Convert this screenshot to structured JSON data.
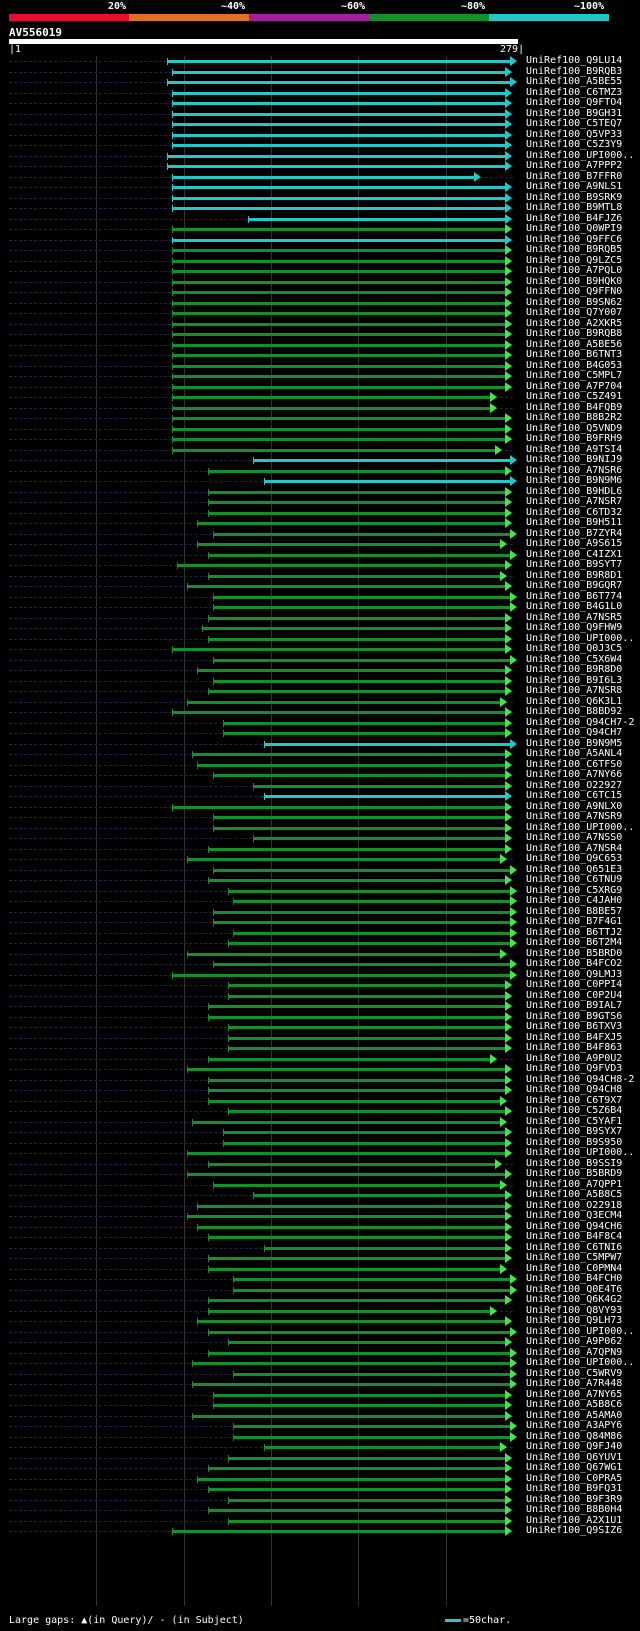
{
  "legend": {
    "bands": [
      {
        "label": "20%",
        "color": "#e0102a"
      },
      {
        "label": "~40%",
        "color": "#e07020"
      },
      {
        "label": "~60%",
        "color": "#a0209a"
      },
      {
        "label": "~80%",
        "color": "#12902a"
      },
      {
        "label": "~100%",
        "color": "#22c7c7"
      }
    ]
  },
  "query": {
    "name": "AV556019",
    "start": "1",
    "end": "279"
  },
  "footer": {
    "gaps": "Large gaps: ▲(in Query)/ - (in Subject)",
    "scale": "=50char."
  },
  "hits": [
    {
      "name": "UniRef100_Q9LU14",
      "start": 0.31,
      "end": 1.0,
      "c": "cyan"
    },
    {
      "name": "UniRef100_B9RQB3",
      "start": 0.32,
      "end": 0.99,
      "c": "cyan"
    },
    {
      "name": "UniRef100_A5BE55",
      "start": 0.31,
      "end": 1.0,
      "c": "cyan"
    },
    {
      "name": "UniRef100_C6TMZ3",
      "start": 0.32,
      "end": 0.99,
      "c": "cyan"
    },
    {
      "name": "UniRef100_Q9FTO4",
      "start": 0.32,
      "end": 0.99,
      "c": "cyan"
    },
    {
      "name": "UniRef100_B9GH31",
      "start": 0.32,
      "end": 0.99,
      "c": "cyan"
    },
    {
      "name": "UniRef100_C5TEQ7",
      "start": 0.32,
      "end": 0.99,
      "c": "cyan"
    },
    {
      "name": "UniRef100_Q5VP33",
      "start": 0.32,
      "end": 0.99,
      "c": "cyan"
    },
    {
      "name": "UniRef100_C5Z3Y9",
      "start": 0.32,
      "end": 0.99,
      "c": "cyan"
    },
    {
      "name": "UniRef100_UPI000..",
      "start": 0.31,
      "end": 0.99,
      "c": "cyan"
    },
    {
      "name": "UniRef100_A7PPP2",
      "start": 0.31,
      "end": 0.99,
      "c": "cyan"
    },
    {
      "name": "UniRef100_B7FFR0",
      "start": 0.32,
      "end": 0.93,
      "c": "cyan"
    },
    {
      "name": "UniRef100_A9NLS1",
      "start": 0.32,
      "end": 0.99,
      "c": "cyan"
    },
    {
      "name": "UniRef100_B9SRK9",
      "start": 0.32,
      "end": 0.99,
      "c": "cyan"
    },
    {
      "name": "UniRef100_B9MTL8",
      "start": 0.32,
      "end": 0.99,
      "c": "cyan"
    },
    {
      "name": "UniRef100_B4FJZ6",
      "start": 0.47,
      "end": 0.99,
      "c": "cyan"
    },
    {
      "name": "UniRef100_Q0WPI9",
      "start": 0.32,
      "end": 0.99,
      "c": "green"
    },
    {
      "name": "UniRef100_Q9FFC6",
      "start": 0.32,
      "end": 0.99,
      "c": "cyan"
    },
    {
      "name": "UniRef100_B9RQB5",
      "start": 0.32,
      "end": 0.99,
      "c": "green"
    },
    {
      "name": "UniRef100_Q9LZC5",
      "start": 0.32,
      "end": 0.99,
      "c": "green"
    },
    {
      "name": "UniRef100_A7PQL0",
      "start": 0.32,
      "end": 0.99,
      "c": "green"
    },
    {
      "name": "UniRef100_B9HQK0",
      "start": 0.32,
      "end": 0.99,
      "c": "green"
    },
    {
      "name": "UniRef100_Q9FFN0",
      "start": 0.32,
      "end": 0.99,
      "c": "green"
    },
    {
      "name": "UniRef100_B9SN62",
      "start": 0.32,
      "end": 0.99,
      "c": "green"
    },
    {
      "name": "UniRef100_Q7Y007",
      "start": 0.32,
      "end": 0.99,
      "c": "green"
    },
    {
      "name": "UniRef100_A2XKR5",
      "start": 0.32,
      "end": 0.99,
      "c": "green"
    },
    {
      "name": "UniRef100_B9RQB8",
      "start": 0.32,
      "end": 0.99,
      "c": "green"
    },
    {
      "name": "UniRef100_A5BE56",
      "start": 0.32,
      "end": 0.99,
      "c": "green"
    },
    {
      "name": "UniRef100_B6TNT3",
      "start": 0.32,
      "end": 0.99,
      "c": "green"
    },
    {
      "name": "UniRef100_B4G053",
      "start": 0.32,
      "end": 0.99,
      "c": "green"
    },
    {
      "name": "UniRef100_C5MPL7",
      "start": 0.32,
      "end": 0.99,
      "c": "green"
    },
    {
      "name": "UniRef100_A7P704",
      "start": 0.32,
      "end": 0.99,
      "c": "green"
    },
    {
      "name": "UniRef100_C5Z491",
      "start": 0.32,
      "end": 0.96,
      "c": "green"
    },
    {
      "name": "UniRef100_B4FQB9",
      "start": 0.32,
      "end": 0.96,
      "c": "green"
    },
    {
      "name": "UniRef100_B8B2R2",
      "start": 0.32,
      "end": 0.99,
      "c": "green"
    },
    {
      "name": "UniRef100_Q5VND9",
      "start": 0.32,
      "end": 0.99,
      "c": "green"
    },
    {
      "name": "UniRef100_B9FRH9",
      "start": 0.32,
      "end": 0.99,
      "c": "green"
    },
    {
      "name": "UniRef100_A9TSI4",
      "start": 0.32,
      "end": 0.97,
      "c": "green"
    },
    {
      "name": "UniRef100_B9NIJ9",
      "start": 0.48,
      "end": 1.0,
      "c": "cyan"
    },
    {
      "name": "UniRef100_A7NSR6",
      "start": 0.39,
      "end": 0.99,
      "c": "green"
    },
    {
      "name": "UniRef100_B9N9M6",
      "start": 0.5,
      "end": 1.0,
      "c": "cyan"
    },
    {
      "name": "UniRef100_B9HDL6",
      "start": 0.39,
      "end": 0.99,
      "c": "green"
    },
    {
      "name": "UniRef100_A7NSR7",
      "start": 0.39,
      "end": 0.99,
      "c": "green"
    },
    {
      "name": "UniRef100_C6TD32",
      "start": 0.39,
      "end": 0.99,
      "c": "green"
    },
    {
      "name": "UniRef100_B9H511",
      "start": 0.37,
      "end": 0.99,
      "c": "green"
    },
    {
      "name": "UniRef100_B7ZYR4",
      "start": 0.4,
      "end": 1.0,
      "c": "green"
    },
    {
      "name": "UniRef100_A9S615",
      "start": 0.37,
      "end": 0.98,
      "c": "green"
    },
    {
      "name": "UniRef100_C4IZX1",
      "start": 0.39,
      "end": 1.0,
      "c": "green"
    },
    {
      "name": "UniRef100_B9SYT7",
      "start": 0.33,
      "end": 0.99,
      "c": "green"
    },
    {
      "name": "UniRef100_B9R8D1",
      "start": 0.39,
      "end": 0.98,
      "c": "green"
    },
    {
      "name": "UniRef100_B9GQR7",
      "start": 0.35,
      "end": 0.99,
      "c": "green"
    },
    {
      "name": "UniRef100_B6T774",
      "start": 0.4,
      "end": 1.0,
      "c": "green"
    },
    {
      "name": "UniRef100_B4G1L0",
      "start": 0.4,
      "end": 1.0,
      "c": "green"
    },
    {
      "name": "UniRef100_A7NSR5",
      "start": 0.39,
      "end": 0.99,
      "c": "green"
    },
    {
      "name": "UniRef100_Q9FHW9",
      "start": 0.38,
      "end": 0.99,
      "c": "green"
    },
    {
      "name": "UniRef100_UPI000..",
      "start": 0.39,
      "end": 0.99,
      "c": "green"
    },
    {
      "name": "UniRef100_Q0J3C5",
      "start": 0.32,
      "end": 0.99,
      "c": "green"
    },
    {
      "name": "UniRef100_C5X6W4",
      "start": 0.4,
      "end": 1.0,
      "c": "green"
    },
    {
      "name": "UniRef100_B9R8D0",
      "start": 0.37,
      "end": 0.99,
      "c": "green"
    },
    {
      "name": "UniRef100_B9I6L3",
      "start": 0.4,
      "end": 0.99,
      "c": "green"
    },
    {
      "name": "UniRef100_A7NSR8",
      "start": 0.39,
      "end": 0.99,
      "c": "green"
    },
    {
      "name": "UniRef100_Q6K3L1",
      "start": 0.35,
      "end": 0.98,
      "c": "green"
    },
    {
      "name": "UniRef100_B8BD92",
      "start": 0.32,
      "end": 0.99,
      "c": "green"
    },
    {
      "name": "UniRef100_Q94CH7-2",
      "start": 0.42,
      "end": 0.99,
      "c": "green"
    },
    {
      "name": "UniRef100_Q94CH7",
      "start": 0.42,
      "end": 0.99,
      "c": "green"
    },
    {
      "name": "UniRef100_B9N9M5",
      "start": 0.5,
      "end": 1.0,
      "c": "cyan"
    },
    {
      "name": "UniRef100_A5ANL4",
      "start": 0.36,
      "end": 0.99,
      "c": "green"
    },
    {
      "name": "UniRef100_C6TFS0",
      "start": 0.37,
      "end": 0.99,
      "c": "green"
    },
    {
      "name": "UniRef100_A7NY66",
      "start": 0.4,
      "end": 0.99,
      "c": "green"
    },
    {
      "name": "UniRef100_O22927",
      "start": 0.48,
      "end": 0.99,
      "c": "green"
    },
    {
      "name": "UniRef100_C6TC15",
      "start": 0.5,
      "end": 0.99,
      "c": "cyan"
    },
    {
      "name": "UniRef100_A9NLX0",
      "start": 0.32,
      "end": 0.99,
      "c": "green"
    },
    {
      "name": "UniRef100_A7NSR9",
      "start": 0.4,
      "end": 0.99,
      "c": "green"
    },
    {
      "name": "UniRef100_UPI000..",
      "start": 0.4,
      "end": 0.99,
      "c": "green"
    },
    {
      "name": "UniRef100_A7NSS0",
      "start": 0.48,
      "end": 0.99,
      "c": "green"
    },
    {
      "name": "UniRef100_A7NSR4",
      "start": 0.39,
      "end": 0.99,
      "c": "green"
    },
    {
      "name": "UniRef100_Q9C653",
      "start": 0.35,
      "end": 0.98,
      "c": "green"
    },
    {
      "name": "UniRef100_Q651E3",
      "start": 0.4,
      "end": 1.0,
      "c": "green"
    },
    {
      "name": "UniRef100_C6TNU9",
      "start": 0.39,
      "end": 0.99,
      "c": "green"
    },
    {
      "name": "UniRef100_C5XRG9",
      "start": 0.43,
      "end": 1.0,
      "c": "green"
    },
    {
      "name": "UniRef100_C4JAH0",
      "start": 0.44,
      "end": 1.0,
      "c": "green"
    },
    {
      "name": "UniRef100_B8BE57",
      "start": 0.4,
      "end": 1.0,
      "c": "green"
    },
    {
      "name": "UniRef100_B7F4G1",
      "start": 0.4,
      "end": 1.0,
      "c": "green"
    },
    {
      "name": "UniRef100_B6TTJ2",
      "start": 0.44,
      "end": 1.0,
      "c": "green"
    },
    {
      "name": "UniRef100_B6T2M4",
      "start": 0.43,
      "end": 1.0,
      "c": "green"
    },
    {
      "name": "UniRef100_B5BRD0",
      "start": 0.35,
      "end": 0.98,
      "c": "green"
    },
    {
      "name": "UniRef100_B4FCO2",
      "start": 0.4,
      "end": 1.0,
      "c": "green"
    },
    {
      "name": "UniRef100_Q9LMJ3",
      "start": 0.32,
      "end": 1.0,
      "c": "green"
    },
    {
      "name": "UniRef100_C0PPI4",
      "start": 0.43,
      "end": 0.99,
      "c": "green"
    },
    {
      "name": "UniRef100_C0P2U4",
      "start": 0.43,
      "end": 0.99,
      "c": "green"
    },
    {
      "name": "UniRef100_B9IAL7",
      "start": 0.39,
      "end": 0.99,
      "c": "green"
    },
    {
      "name": "UniRef100_B9GTS6",
      "start": 0.39,
      "end": 0.99,
      "c": "green"
    },
    {
      "name": "UniRef100_B6TXV3",
      "start": 0.43,
      "end": 0.99,
      "c": "green"
    },
    {
      "name": "UniRef100_B4FXJ5",
      "start": 0.43,
      "end": 0.99,
      "c": "green"
    },
    {
      "name": "UniRef100_B4F863",
      "start": 0.43,
      "end": 0.99,
      "c": "green"
    },
    {
      "name": "UniRef100_A9P0U2",
      "start": 0.39,
      "end": 0.96,
      "c": "green"
    },
    {
      "name": "UniRef100_Q9FVD3",
      "start": 0.35,
      "end": 0.99,
      "c": "green"
    },
    {
      "name": "UniRef100_Q94CH8-2",
      "start": 0.39,
      "end": 0.99,
      "c": "green"
    },
    {
      "name": "UniRef100_Q94CH8",
      "start": 0.39,
      "end": 0.99,
      "c": "green"
    },
    {
      "name": "UniRef100_C6T9X7",
      "start": 0.39,
      "end": 0.98,
      "c": "green"
    },
    {
      "name": "UniRef100_C5Z6B4",
      "start": 0.43,
      "end": 0.99,
      "c": "green"
    },
    {
      "name": "UniRef100_C5YAF1",
      "start": 0.36,
      "end": 0.98,
      "c": "green"
    },
    {
      "name": "UniRef100_B9SYX7",
      "start": 0.42,
      "end": 0.99,
      "c": "green"
    },
    {
      "name": "UniRef100_B9S950",
      "start": 0.42,
      "end": 0.99,
      "c": "green"
    },
    {
      "name": "UniRef100_UPI000..",
      "start": 0.35,
      "end": 0.99,
      "c": "green"
    },
    {
      "name": "UniRef100_B9SSI9",
      "start": 0.39,
      "end": 0.97,
      "c": "green"
    },
    {
      "name": "UniRef100_B5BRD9",
      "start": 0.35,
      "end": 0.99,
      "c": "green"
    },
    {
      "name": "UniRef100_A7QPP1",
      "start": 0.4,
      "end": 0.98,
      "c": "green"
    },
    {
      "name": "UniRef100_A5B8C5",
      "start": 0.48,
      "end": 0.99,
      "c": "green"
    },
    {
      "name": "UniRef100_O22918",
      "start": 0.37,
      "end": 0.99,
      "c": "green"
    },
    {
      "name": "UniRef100_Q3ECM4",
      "start": 0.35,
      "end": 0.99,
      "c": "green"
    },
    {
      "name": "UniRef100_Q94CH6",
      "start": 0.37,
      "end": 0.99,
      "c": "green"
    },
    {
      "name": "UniRef100_B4F8C4",
      "start": 0.39,
      "end": 0.99,
      "c": "green"
    },
    {
      "name": "UniRef100_C6TNI6",
      "start": 0.5,
      "end": 0.99,
      "c": "green"
    },
    {
      "name": "UniRef100_C5MPW7",
      "start": 0.39,
      "end": 0.99,
      "c": "green"
    },
    {
      "name": "UniRef100_C0PMN4",
      "start": 0.39,
      "end": 0.98,
      "c": "green"
    },
    {
      "name": "UniRef100_B4FCH0",
      "start": 0.44,
      "end": 1.0,
      "c": "green"
    },
    {
      "name": "UniRef100_Q0E4T6",
      "start": 0.44,
      "end": 1.0,
      "c": "green"
    },
    {
      "name": "UniRef100_Q6K4G2",
      "start": 0.39,
      "end": 0.99,
      "c": "green"
    },
    {
      "name": "UniRef100_Q8VY93",
      "start": 0.39,
      "end": 0.96,
      "c": "green"
    },
    {
      "name": "UniRef100_Q9LH73",
      "start": 0.37,
      "end": 0.99,
      "c": "green"
    },
    {
      "name": "UniRef100_UPI000..",
      "start": 0.39,
      "end": 1.0,
      "c": "green"
    },
    {
      "name": "UniRef100_A9P062",
      "start": 0.43,
      "end": 0.99,
      "c": "green"
    },
    {
      "name": "UniRef100_A7QPN9",
      "start": 0.39,
      "end": 1.0,
      "c": "green"
    },
    {
      "name": "UniRef100_UPI000..",
      "start": 0.36,
      "end": 1.0,
      "c": "green"
    },
    {
      "name": "UniRef100_C5WRV9",
      "start": 0.44,
      "end": 1.0,
      "c": "green"
    },
    {
      "name": "UniRef100_A7R448",
      "start": 0.36,
      "end": 1.0,
      "c": "green"
    },
    {
      "name": "UniRef100_A7NY65",
      "start": 0.4,
      "end": 0.99,
      "c": "green"
    },
    {
      "name": "UniRef100_A5B8C6",
      "start": 0.4,
      "end": 0.99,
      "c": "green"
    },
    {
      "name": "UniRef100_A5AMA0",
      "start": 0.36,
      "end": 0.99,
      "c": "green"
    },
    {
      "name": "UniRef100_A3APY6",
      "start": 0.44,
      "end": 1.0,
      "c": "green"
    },
    {
      "name": "UniRef100_Q84M86",
      "start": 0.44,
      "end": 1.0,
      "c": "green"
    },
    {
      "name": "UniRef100_Q9FJ40",
      "start": 0.5,
      "end": 0.98,
      "c": "green"
    },
    {
      "name": "UniRef100_Q6YUV1",
      "start": 0.43,
      "end": 0.99,
      "c": "green"
    },
    {
      "name": "UniRef100_Q67WG1",
      "start": 0.39,
      "end": 0.99,
      "c": "green"
    },
    {
      "name": "UniRef100_C0PRA5",
      "start": 0.37,
      "end": 0.99,
      "c": "green"
    },
    {
      "name": "UniRef100_B9FQ31",
      "start": 0.39,
      "end": 0.99,
      "c": "green"
    },
    {
      "name": "UniRef100_B9F3R9",
      "start": 0.43,
      "end": 0.99,
      "c": "green"
    },
    {
      "name": "UniRef100_B8B0H4",
      "start": 0.39,
      "end": 0.99,
      "c": "green"
    },
    {
      "name": "UniRef100_A2X1U1",
      "start": 0.43,
      "end": 0.99,
      "c": "green"
    },
    {
      "name": "UniRef100_Q9SIZ6",
      "start": 0.32,
      "end": 0.99,
      "c": "green"
    }
  ]
}
